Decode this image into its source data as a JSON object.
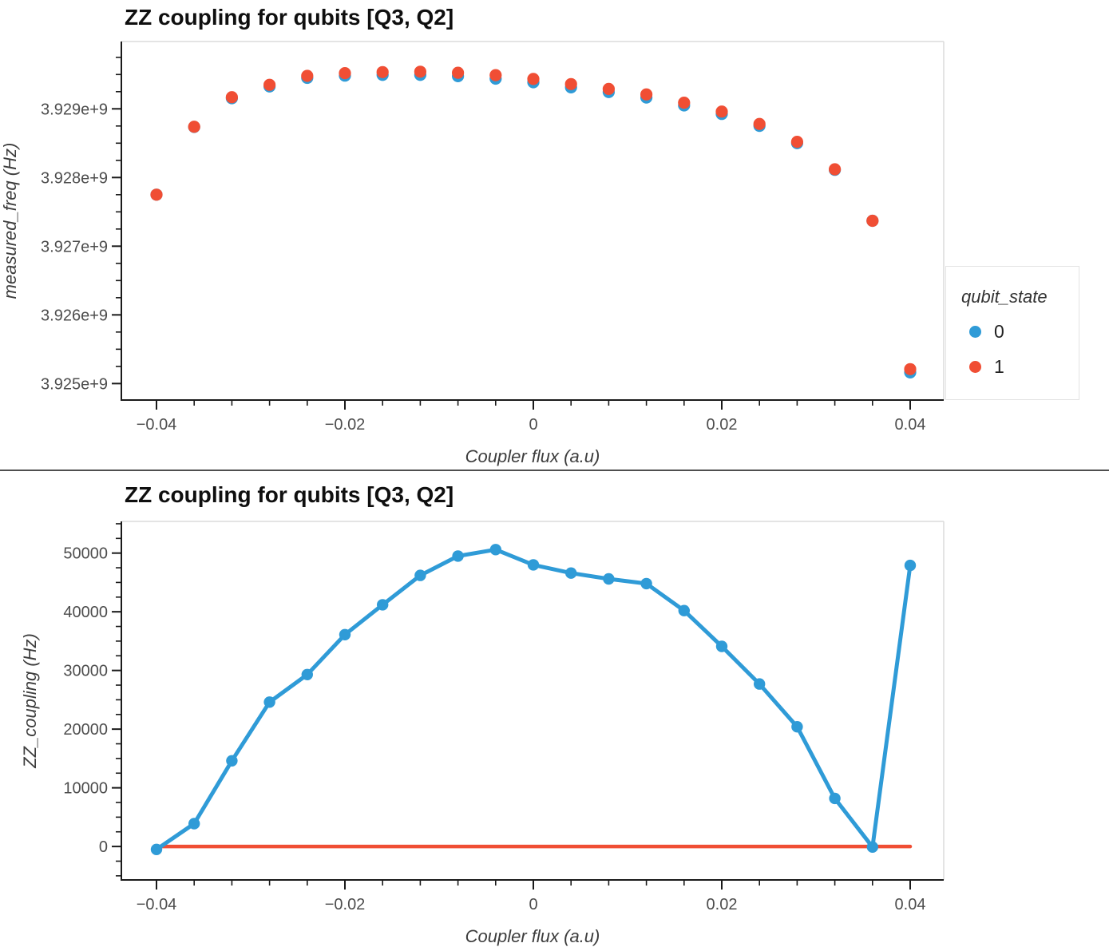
{
  "divider_present": true,
  "colors": {
    "state0_blue": "#2F9BD7",
    "state1_red": "#F04E34",
    "spine": "#1a1a1a",
    "border_gray": "#dcdcdc",
    "tick_text": "#4d4d4d"
  },
  "chart_data": [
    {
      "type": "scatter",
      "title": "ZZ coupling for qubits [Q3, Q2]",
      "xlabel": "Coupler flux (a.u)",
      "ylabel": "measured_freq (Hz)",
      "grid": false,
      "legend": {
        "title": "qubit_state",
        "position": "right",
        "entries": [
          {
            "label": "0",
            "color": "#2F9BD7"
          },
          {
            "label": "1",
            "color": "#F04E34"
          }
        ]
      },
      "xlim": [
        -0.04373,
        0.04356
      ],
      "ylim": [
        3924760000,
        3929980000
      ],
      "xticks": {
        "values": [
          -0.04,
          -0.02,
          0,
          0.02,
          0.04
        ],
        "labels": [
          "−0.04",
          "−0.02",
          "0",
          "0.02",
          "0.04"
        ],
        "minor_step": 0.004
      },
      "yticks": {
        "values": [
          3925000000,
          3926000000,
          3927000000,
          3928000000,
          3929000000
        ],
        "labels": [
          "3.925e+9",
          "3.926e+9",
          "3.927e+9",
          "3.928e+9",
          "3.929e+9"
        ],
        "minor_step": 250000
      },
      "x": [
        -0.04,
        -0.036,
        -0.032,
        -0.028,
        -0.024,
        -0.02,
        -0.016,
        -0.012,
        -0.008,
        -0.004,
        0,
        0.004,
        0.008,
        0.012,
        0.016,
        0.02,
        0.024,
        0.028,
        0.032,
        0.036,
        0.04
      ],
      "series": [
        {
          "name": "qubit_state_0",
          "type": "scatter",
          "marker": "circle",
          "color": "#2F9BD7",
          "values": [
            3927750000,
            3928736000,
            3929155000,
            3929325000,
            3929451000,
            3929484000,
            3929494000,
            3929494000,
            3929476000,
            3929439000,
            3929387000,
            3929313000,
            3929244000,
            3929165000,
            3929050000,
            3928926000,
            3928752000,
            3928500000,
            3928112000,
            3927370000,
            3925162000
          ]
        },
        {
          "name": "qubit_state_1",
          "type": "scatter",
          "marker": "circle",
          "color": "#F04E34",
          "values": [
            3927750000,
            3928740000,
            3929170000,
            3929350000,
            3929480000,
            3929520000,
            3929535000,
            3929540000,
            3929525000,
            3929490000,
            3929435000,
            3929360000,
            3929290000,
            3929210000,
            3929090000,
            3928960000,
            3928780000,
            3928520000,
            3928120000,
            3927370000,
            3925210000
          ]
        }
      ]
    },
    {
      "type": "line",
      "title": "ZZ coupling for qubits [Q3, Q2]",
      "xlabel": "Coupler flux (a.u)",
      "ylabel": "ZZ_coupling (Hz)",
      "grid": false,
      "xlim": [
        -0.04373,
        0.04356
      ],
      "ylim": [
        -5700,
        55400
      ],
      "xticks": {
        "values": [
          -0.04,
          -0.02,
          0,
          0.02,
          0.04
        ],
        "labels": [
          "−0.04",
          "−0.02",
          "0",
          "0.02",
          "0.04"
        ],
        "minor_step": 0.004
      },
      "yticks": {
        "values": [
          0,
          10000,
          20000,
          30000,
          40000,
          50000
        ],
        "labels": [
          "0",
          "10000",
          "20000",
          "30000",
          "40000",
          "50000"
        ],
        "minor_step": 2500
      },
      "x": [
        -0.04,
        -0.036,
        -0.032,
        -0.028,
        -0.024,
        -0.02,
        -0.016,
        -0.012,
        -0.008,
        -0.004,
        0,
        0.004,
        0.008,
        0.012,
        0.016,
        0.02,
        0.024,
        0.028,
        0.032,
        0.036,
        0.04
      ],
      "series": [
        {
          "name": "zero_reference",
          "type": "line",
          "marker": null,
          "color": "#F04E34",
          "width": 4.5,
          "x": [
            -0.04,
            0.04
          ],
          "values": [
            0,
            0
          ]
        },
        {
          "name": "ZZ_coupling",
          "type": "line",
          "marker": "circle",
          "color": "#2F9BD7",
          "width": 5,
          "values": [
            -500,
            3900,
            14600,
            24600,
            29300,
            36100,
            41200,
            46200,
            49500,
            50600,
            48000,
            46600,
            45600,
            44800,
            40200,
            34100,
            27700,
            20400,
            8200,
            -100,
            47900
          ]
        }
      ]
    }
  ]
}
